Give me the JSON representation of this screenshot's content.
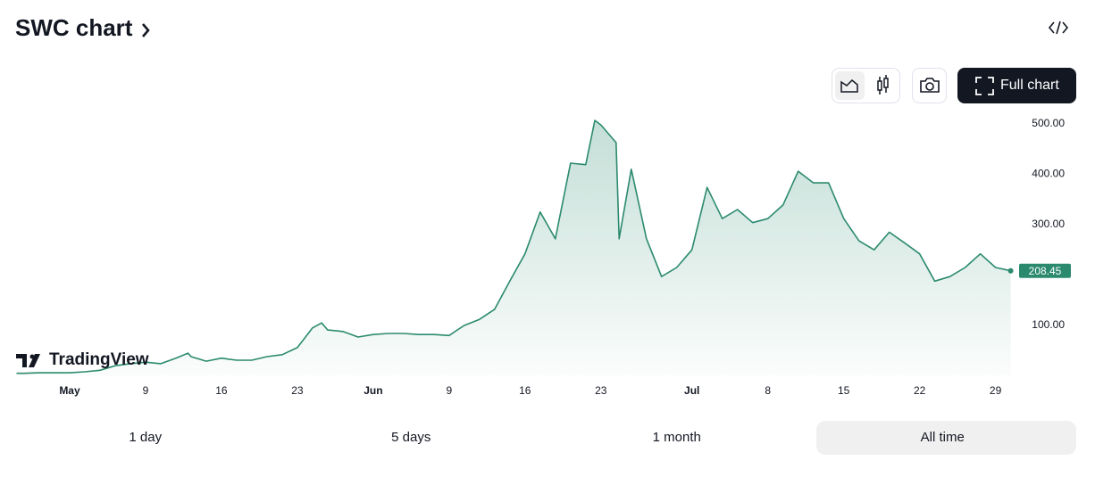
{
  "ui": {
    "title": "SWC chart",
    "button": "Full chart",
    "logo": "TradingView",
    "ranges": [
      "1 day",
      "5 days",
      "1 month",
      "All time"
    ],
    "selected_range": 3
  },
  "chart_data": {
    "type": "area",
    "color": "#2b8a6e",
    "x": [
      -3.5,
      -3,
      -2,
      -1,
      0,
      1,
      2,
      3,
      4,
      5,
      6,
      7,
      7.8,
      8,
      9,
      10,
      11,
      12,
      13,
      14,
      15,
      16,
      16.6,
      17,
      18,
      19,
      20,
      21,
      22,
      23,
      24,
      25,
      26,
      27,
      28,
      29,
      30,
      31,
      32,
      33,
      34,
      34.6,
      35,
      36,
      36.2,
      37,
      38,
      39,
      40,
      41,
      42,
      43,
      44,
      45,
      46,
      47,
      48,
      49,
      50,
      51,
      52,
      53,
      54,
      55,
      56,
      57,
      58,
      59,
      60,
      61,
      62
    ],
    "values": [
      5,
      5,
      6,
      6,
      6,
      8,
      11,
      20,
      24,
      27,
      24,
      35,
      45,
      38,
      29,
      35,
      31,
      31,
      38,
      42,
      56,
      95,
      105,
      91,
      88,
      77,
      82,
      84,
      84,
      82,
      82,
      80,
      100,
      112,
      132,
      188,
      242,
      325,
      272,
      422,
      419,
      507,
      498,
      463,
      272,
      410,
      272,
      197,
      215,
      250,
      374,
      312,
      330,
      304,
      312,
      339,
      406,
      383,
      383,
      312,
      268,
      250,
      285,
      264,
      242,
      188,
      197,
      215,
      242,
      215,
      208.45
    ],
    "xlim": [
      -3.53,
      62.2
    ],
    "ylim": [
      0,
      530
    ],
    "xticks": [
      {
        "value": 0,
        "label": "May"
      },
      {
        "value": 5,
        "label": "9"
      },
      {
        "value": 10,
        "label": "16"
      },
      {
        "value": 15,
        "label": "23"
      },
      {
        "value": 20,
        "label": "Jun"
      },
      {
        "value": 25,
        "label": "9"
      },
      {
        "value": 30,
        "label": "16"
      },
      {
        "value": 35,
        "label": "23"
      },
      {
        "value": 41,
        "label": "Jul"
      },
      {
        "value": 46,
        "label": "8"
      },
      {
        "value": 51,
        "label": "15"
      },
      {
        "value": 56,
        "label": "22"
      },
      {
        "value": 61,
        "label": "29"
      }
    ],
    "yticks": [
      {
        "value": 100,
        "label": "100.00"
      },
      {
        "value": 300,
        "label": "300.00"
      },
      {
        "value": 400,
        "label": "400.00"
      },
      {
        "value": 500,
        "label": "500.00"
      }
    ]
  }
}
